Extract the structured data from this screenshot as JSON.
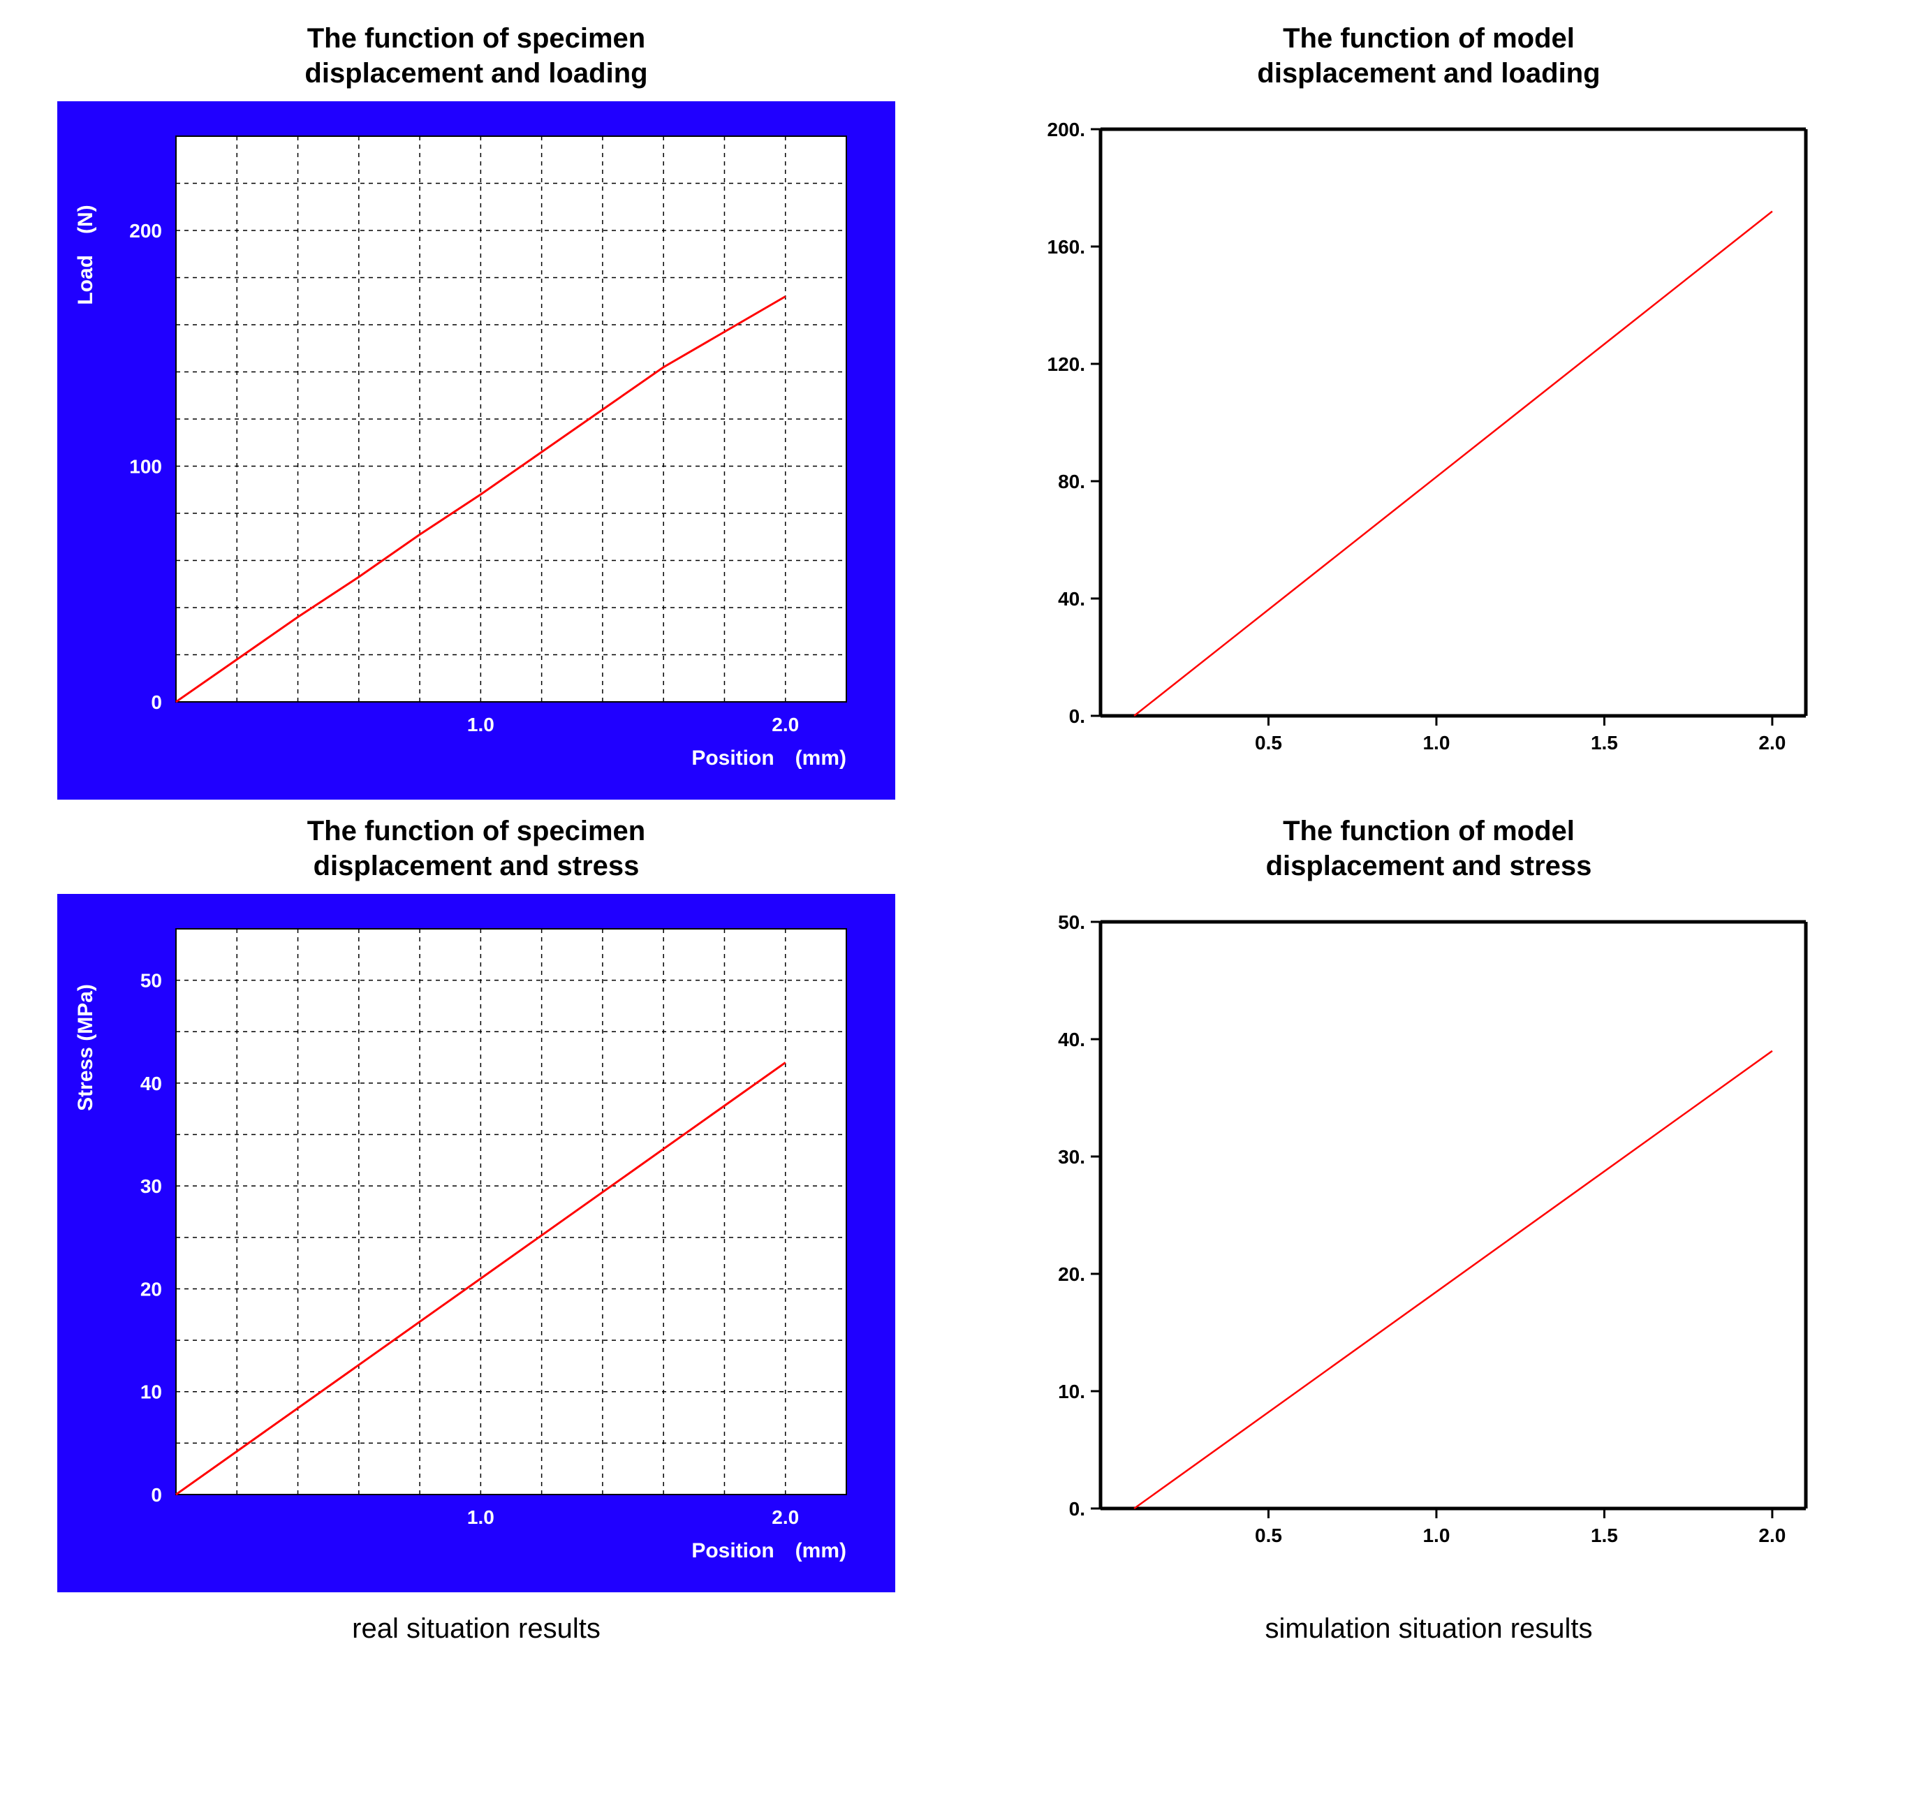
{
  "captions": {
    "left": "real situation results",
    "right": "simulation situation results"
  },
  "charts": {
    "specimen_load": {
      "type": "line",
      "title": "The function of specimen\ndisplacement and loading",
      "title_fontsize": 40,
      "frame_background": "#2000ff",
      "plot_background": "#ffffff",
      "grid_color": "#000000",
      "grid_dash": "6,6",
      "axis_label_color": "#ffffff",
      "tick_label_color": "#ffffff",
      "label_fontsize": 30,
      "tick_fontsize": 28,
      "line_color": "#ff0000",
      "line_width": 3,
      "xlabel": "Position (mm)",
      "ylabel": "Load (N)",
      "xlim": [
        0,
        2.2
      ],
      "ylim": [
        0,
        240
      ],
      "xticks": [
        1.0,
        2.0
      ],
      "xtick_labels": [
        "1.0",
        "2.0"
      ],
      "yticks": [
        0,
        100,
        200
      ],
      "ytick_labels": [
        "0",
        "100",
        "200"
      ],
      "grid_x_step": 0.2,
      "grid_y_step": 20,
      "data_x": [
        0,
        0.2,
        0.4,
        0.6,
        0.8,
        1.0,
        1.2,
        1.4,
        1.6,
        1.8,
        2.0
      ],
      "data_y": [
        0,
        18,
        36,
        53,
        71,
        88,
        106,
        124,
        142,
        157,
        172
      ]
    },
    "model_load": {
      "type": "line",
      "title": "The function of model\ndisplacement and loading",
      "title_fontsize": 40,
      "plot_background": "#ffffff",
      "axis_color": "#000000",
      "axis_width": 5,
      "tick_label_color": "#000000",
      "tick_fontsize": 28,
      "line_color": "#ff0000",
      "line_width": 2.5,
      "xlim": [
        0,
        2.1
      ],
      "ylim": [
        0,
        200
      ],
      "xticks": [
        0.5,
        1.0,
        1.5,
        2.0
      ],
      "xtick_labels": [
        "0.5",
        "1.0",
        "1.5",
        "2.0"
      ],
      "yticks": [
        0,
        40,
        80,
        120,
        160,
        200
      ],
      "ytick_labels": [
        "0.",
        "40.",
        "80.",
        "120.",
        "160.",
        "200."
      ],
      "data_x": [
        0.1,
        2.0
      ],
      "data_y": [
        0,
        172
      ]
    },
    "specimen_stress": {
      "type": "line",
      "title": "The function of specimen\ndisplacement and stress",
      "title_fontsize": 40,
      "frame_background": "#2000ff",
      "plot_background": "#ffffff",
      "grid_color": "#000000",
      "grid_dash": "6,6",
      "axis_label_color": "#ffffff",
      "tick_label_color": "#ffffff",
      "label_fontsize": 30,
      "tick_fontsize": 28,
      "line_color": "#ff0000",
      "line_width": 3,
      "xlabel": "Position (mm)",
      "ylabel": "Stress (MPa)",
      "xlim": [
        0,
        2.2
      ],
      "ylim": [
        0,
        55
      ],
      "xticks": [
        1.0,
        2.0
      ],
      "xtick_labels": [
        "1.0",
        "2.0"
      ],
      "yticks": [
        0,
        10,
        20,
        30,
        40,
        50
      ],
      "ytick_labels": [
        "0",
        "10",
        "20",
        "30",
        "40",
        "50"
      ],
      "grid_x_step": 0.2,
      "grid_y_step": 5,
      "data_x": [
        0,
        0.5,
        1.0,
        1.5,
        2.0
      ],
      "data_y": [
        0,
        10.5,
        21,
        31.5,
        42
      ]
    },
    "model_stress": {
      "type": "line",
      "title": "The function of model\ndisplacement and stress",
      "title_fontsize": 40,
      "plot_background": "#ffffff",
      "axis_color": "#000000",
      "axis_width": 5,
      "tick_label_color": "#000000",
      "tick_fontsize": 28,
      "line_color": "#ff0000",
      "line_width": 2.5,
      "xlim": [
        0,
        2.1
      ],
      "ylim": [
        0,
        50
      ],
      "xticks": [
        0.5,
        1.0,
        1.5,
        2.0
      ],
      "xtick_labels": [
        "0.5",
        "1.0",
        "1.5",
        "2.0"
      ],
      "yticks": [
        0,
        10,
        20,
        30,
        40,
        50
      ],
      "ytick_labels": [
        "0.",
        "10.",
        "20.",
        "30.",
        "40.",
        "50."
      ],
      "data_x": [
        0.1,
        2.0
      ],
      "data_y": [
        0,
        39
      ]
    }
  }
}
